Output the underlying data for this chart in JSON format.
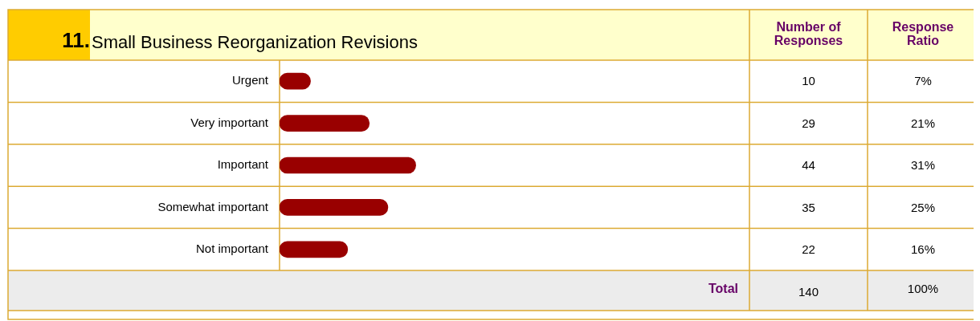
{
  "chart_data": {
    "type": "bar",
    "orientation": "horizontal",
    "title": "11.Small Business Reorganization Revisions",
    "categories": [
      "Urgent",
      "Very important",
      "Important",
      "Somewhat important",
      "Not important"
    ],
    "values": [
      10,
      29,
      44,
      35,
      22
    ],
    "color": "#990000",
    "data_labels": true,
    "annotations": [
      "Number of Responses",
      "Response Ratio",
      "Total",
      "140",
      "100%",
      "7%",
      "21%",
      "31%",
      "25%",
      "16%"
    ],
    "legend": false
  }
}
